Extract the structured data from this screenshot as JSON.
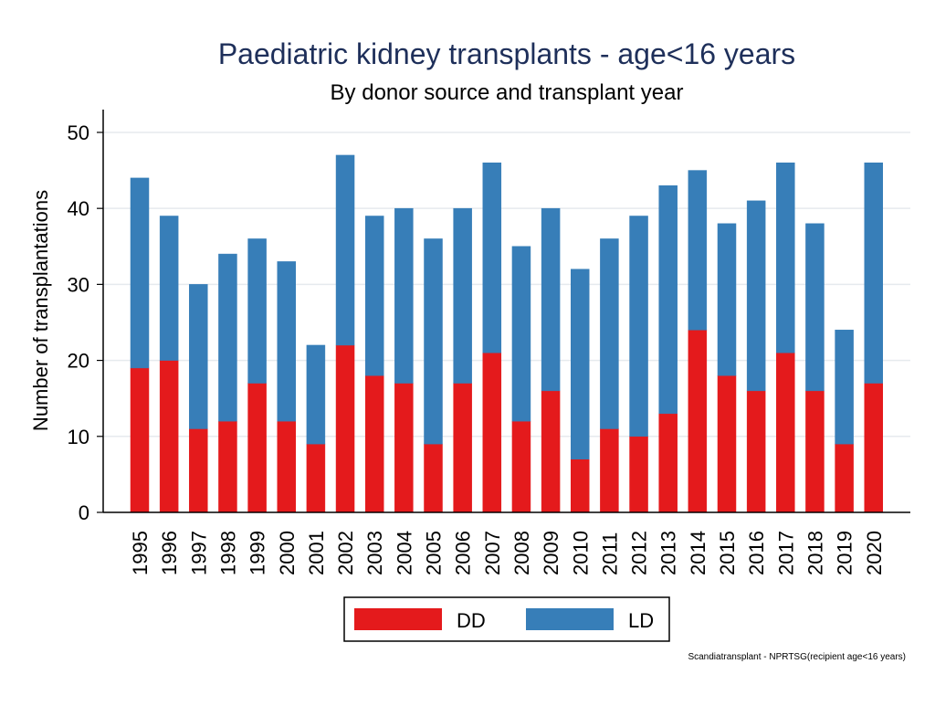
{
  "chart_data": {
    "type": "bar",
    "stacked": true,
    "title": "Paediatric kidney transplants - age<16 years",
    "subtitle": "By donor source and transplant year",
    "xlabel": "",
    "ylabel": "Number of transplantations",
    "ylim": [
      0,
      53
    ],
    "yticks": [
      0,
      10,
      20,
      30,
      40,
      50
    ],
    "grid": true,
    "legend_position": "bottom",
    "categories": [
      "1995",
      "1996",
      "1997",
      "1998",
      "1999",
      "2000",
      "2001",
      "2002",
      "2003",
      "2004",
      "2005",
      "2006",
      "2007",
      "2008",
      "2009",
      "2010",
      "2011",
      "2012",
      "2013",
      "2014",
      "2015",
      "2016",
      "2017",
      "2018",
      "2019",
      "2020"
    ],
    "series": [
      {
        "name": "DD",
        "color": "#e41a1c",
        "values": [
          19,
          20,
          11,
          12,
          17,
          12,
          9,
          22,
          18,
          17,
          9,
          17,
          21,
          12,
          16,
          7,
          11,
          10,
          13,
          24,
          18,
          16,
          21,
          16,
          9,
          17
        ]
      },
      {
        "name": "LD",
        "color": "#377eb8",
        "values": [
          25,
          19,
          19,
          22,
          19,
          21,
          13,
          25,
          21,
          23,
          27,
          23,
          25,
          23,
          24,
          25,
          25,
          29,
          30,
          21,
          20,
          25,
          25,
          22,
          15,
          29
        ]
      }
    ],
    "note": "Scandiatransplant - NPRTSG(recipient age<16 years)"
  }
}
